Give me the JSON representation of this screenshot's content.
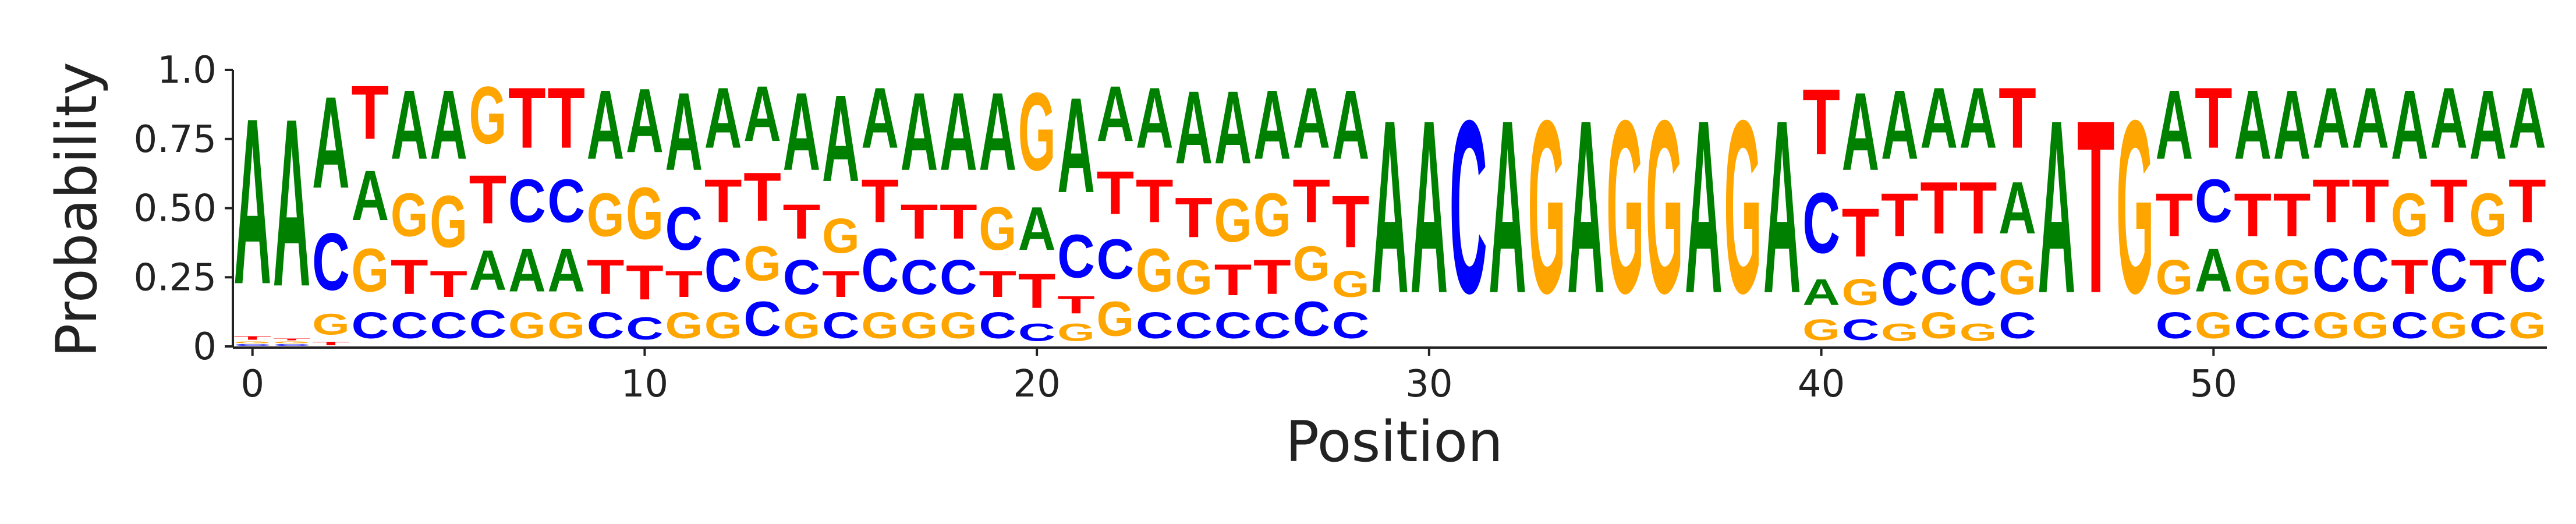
{
  "colors": {
    "A": "#008000",
    "C": "#0000FF",
    "G": "#FFA500",
    "T": "#FF0000"
  },
  "chart_data": {
    "type": "sequence-logo",
    "title": "",
    "xlabel": "Position",
    "ylabel": "Probability",
    "ylim": [
      0,
      1
    ],
    "xlim": [
      -0.5,
      58.5
    ],
    "xticks": [
      0,
      10,
      20,
      30,
      40,
      50
    ],
    "yticks": [
      0,
      0.25,
      0.5,
      0.75,
      1.0
    ],
    "ytick_labels": [
      "0",
      "0.25",
      "0.50",
      "0.75",
      "1.0"
    ],
    "grid": false,
    "letters": [
      "A",
      "C",
      "G",
      "T"
    ],
    "positions": [
      {
        "A": 0.96,
        "C": 0.01,
        "G": 0.01,
        "T": 0.02
      },
      {
        "A": 0.97,
        "C": 0.01,
        "G": 0.01,
        "T": 0.01
      },
      {
        "A": 0.53,
        "C": 0.33,
        "G": 0.12,
        "T": 0.02
      },
      {
        "A": 0.29,
        "C": 0.15,
        "G": 0.25,
        "T": 0.31
      },
      {
        "A": 0.4,
        "C": 0.15,
        "G": 0.25,
        "T": 0.2
      },
      {
        "A": 0.4,
        "C": 0.15,
        "G": 0.3,
        "T": 0.15
      },
      {
        "A": 0.23,
        "C": 0.16,
        "G": 0.33,
        "T": 0.28
      },
      {
        "A": 0.25,
        "C": 0.25,
        "G": 0.15,
        "T": 0.35
      },
      {
        "A": 0.25,
        "C": 0.25,
        "G": 0.15,
        "T": 0.35
      },
      {
        "A": 0.4,
        "C": 0.15,
        "G": 0.25,
        "T": 0.2
      },
      {
        "A": 0.37,
        "C": 0.13,
        "G": 0.3,
        "T": 0.2
      },
      {
        "A": 0.45,
        "C": 0.25,
        "G": 0.15,
        "T": 0.15
      },
      {
        "A": 0.35,
        "C": 0.25,
        "G": 0.15,
        "T": 0.25
      },
      {
        "A": 0.32,
        "C": 0.2,
        "G": 0.2,
        "T": 0.28
      },
      {
        "A": 0.45,
        "C": 0.2,
        "G": 0.15,
        "T": 0.2
      },
      {
        "A": 0.5,
        "C": 0.15,
        "G": 0.2,
        "T": 0.15
      },
      {
        "A": 0.35,
        "C": 0.25,
        "G": 0.15,
        "T": 0.25
      },
      {
        "A": 0.45,
        "C": 0.2,
        "G": 0.15,
        "T": 0.2
      },
      {
        "A": 0.45,
        "C": 0.2,
        "G": 0.15,
        "T": 0.2
      },
      {
        "A": 0.45,
        "C": 0.15,
        "G": 0.25,
        "T": 0.15
      },
      {
        "A": 0.25,
        "C": 0.1,
        "G": 0.45,
        "T": 0.2
      },
      {
        "A": 0.55,
        "C": 0.25,
        "G": 0.1,
        "T": 0.1
      },
      {
        "A": 0.32,
        "C": 0.23,
        "G": 0.2,
        "T": 0.25
      },
      {
        "A": 0.35,
        "C": 0.15,
        "G": 0.25,
        "T": 0.25
      },
      {
        "A": 0.42,
        "C": 0.15,
        "G": 0.2,
        "T": 0.23
      },
      {
        "A": 0.42,
        "C": 0.15,
        "G": 0.25,
        "T": 0.18
      },
      {
        "A": 0.4,
        "C": 0.15,
        "G": 0.25,
        "T": 0.2
      },
      {
        "A": 0.35,
        "C": 0.2,
        "G": 0.2,
        "T": 0.25
      },
      {
        "A": 0.4,
        "C": 0.15,
        "G": 0.15,
        "T": 0.3
      },
      {
        "A": 1.0,
        "C": 0.0,
        "G": 0.0,
        "T": 0.0
      },
      {
        "A": 1.0,
        "C": 0.0,
        "G": 0.0,
        "T": 0.0
      },
      {
        "A": 0.0,
        "C": 1.0,
        "G": 0.0,
        "T": 0.0
      },
      {
        "A": 1.0,
        "C": 0.0,
        "G": 0.0,
        "T": 0.0
      },
      {
        "A": 0.0,
        "C": 0.0,
        "G": 1.0,
        "T": 0.0
      },
      {
        "A": 1.0,
        "C": 0.0,
        "G": 0.0,
        "T": 0.0
      },
      {
        "A": 0.0,
        "C": 0.0,
        "G": 1.0,
        "T": 0.0
      },
      {
        "A": 0.0,
        "C": 0.0,
        "G": 1.0,
        "T": 0.0
      },
      {
        "A": 1.0,
        "C": 0.0,
        "G": 0.0,
        "T": 0.0
      },
      {
        "A": 0.0,
        "C": 0.0,
        "G": 1.0,
        "T": 0.0
      },
      {
        "A": 1.0,
        "C": 0.0,
        "G": 0.0,
        "T": 0.0
      },
      {
        "A": 0.15,
        "C": 0.35,
        "G": 0.12,
        "T": 0.38
      },
      {
        "A": 0.45,
        "C": 0.12,
        "G": 0.15,
        "T": 0.28
      },
      {
        "A": 0.4,
        "C": 0.25,
        "G": 0.1,
        "T": 0.25
      },
      {
        "A": 0.35,
        "C": 0.2,
        "G": 0.15,
        "T": 0.3
      },
      {
        "A": 0.35,
        "C": 0.25,
        "G": 0.1,
        "T": 0.3
      },
      {
        "A": 0.3,
        "C": 0.15,
        "G": 0.2,
        "T": 0.35
      },
      {
        "A": 1.0,
        "C": 0.0,
        "G": 0.0,
        "T": 0.0
      },
      {
        "A": 0.0,
        "C": 0.0,
        "G": 0.0,
        "T": 1.0
      },
      {
        "A": 0.0,
        "C": 0.0,
        "G": 1.0,
        "T": 0.0
      },
      {
        "A": 0.4,
        "C": 0.15,
        "G": 0.2,
        "T": 0.25
      },
      {
        "A": 0.25,
        "C": 0.25,
        "G": 0.15,
        "T": 0.35
      },
      {
        "A": 0.4,
        "C": 0.15,
        "G": 0.2,
        "T": 0.25
      },
      {
        "A": 0.4,
        "C": 0.15,
        "G": 0.2,
        "T": 0.25
      },
      {
        "A": 0.35,
        "C": 0.25,
        "G": 0.15,
        "T": 0.25
      },
      {
        "A": 0.35,
        "C": 0.25,
        "G": 0.15,
        "T": 0.25
      },
      {
        "A": 0.4,
        "C": 0.15,
        "G": 0.25,
        "T": 0.2
      },
      {
        "A": 0.35,
        "C": 0.25,
        "G": 0.15,
        "T": 0.25
      },
      {
        "A": 0.4,
        "C": 0.15,
        "G": 0.25,
        "T": 0.2
      },
      {
        "A": 0.35,
        "C": 0.25,
        "G": 0.15,
        "T": 0.25
      }
    ]
  }
}
